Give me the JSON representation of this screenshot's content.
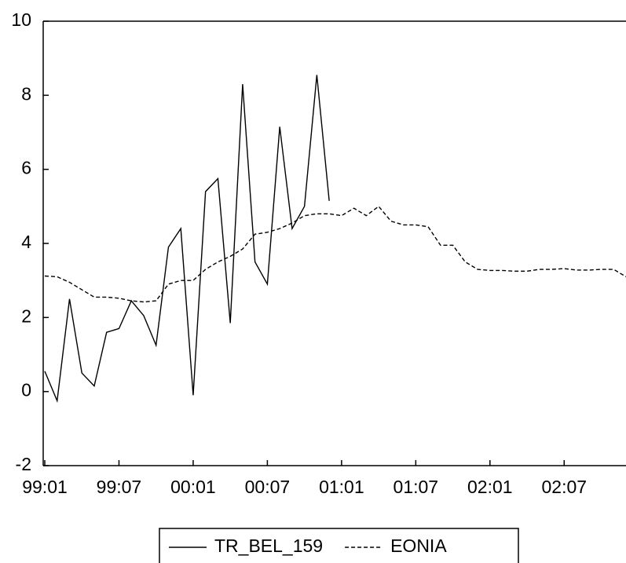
{
  "chart_data": {
    "type": "line",
    "categories": [
      "99:01",
      null,
      null,
      null,
      null,
      null,
      "99:07",
      null,
      null,
      null,
      null,
      null,
      "00:01",
      null,
      null,
      null,
      null,
      null,
      "00:07",
      null,
      null,
      null,
      null,
      null,
      "01:01",
      null,
      null,
      null,
      null,
      null,
      "01:07",
      null,
      null,
      null,
      null,
      null,
      "02:01",
      null,
      null,
      null,
      null,
      null,
      "02:07",
      null,
      null,
      null,
      null,
      null
    ],
    "series": [
      {
        "name": "TR_BEL_159",
        "color": "#000000",
        "dashed": false,
        "values": [
          0.55,
          -0.25,
          2.5,
          0.5,
          0.15,
          1.6,
          1.7,
          2.45,
          2.05,
          1.25,
          3.9,
          4.4,
          -0.1,
          5.4,
          5.75,
          1.85,
          8.3,
          3.5,
          2.9,
          7.15,
          4.4,
          5.0,
          8.55,
          5.15,
          null,
          null,
          null,
          null,
          null,
          null,
          null,
          null,
          null,
          null,
          null,
          null,
          null,
          null,
          null,
          null,
          null,
          null,
          null,
          null,
          null,
          null,
          null,
          null
        ]
      },
      {
        "name": "EONIA",
        "color": "#000000",
        "dashed": true,
        "values": [
          3.12,
          3.1,
          2.95,
          2.75,
          2.55,
          2.55,
          2.52,
          2.45,
          2.42,
          2.45,
          2.9,
          3.0,
          3.0,
          3.3,
          3.5,
          3.65,
          3.85,
          4.25,
          4.3,
          4.4,
          4.55,
          4.75,
          4.8,
          4.8,
          4.75,
          4.95,
          4.75,
          5.0,
          4.6,
          4.5,
          4.5,
          4.45,
          3.95,
          3.95,
          3.5,
          3.3,
          3.27,
          3.27,
          3.25,
          3.25,
          3.3,
          3.3,
          3.32,
          3.28,
          3.28,
          3.3,
          3.3,
          3.1
        ]
      }
    ],
    "ylim": [
      -2,
      10
    ],
    "yticks": [
      -2,
      0,
      2,
      4,
      6,
      8,
      10
    ],
    "grid": false
  }
}
